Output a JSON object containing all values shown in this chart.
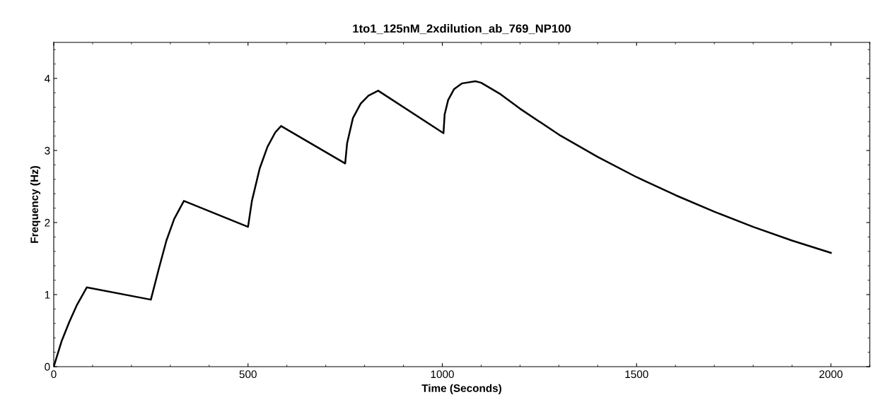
{
  "chart_data": {
    "type": "line",
    "title": "1to1_125nM_2xdilution_ab_769_NP100",
    "xlabel": "Time (Seconds)",
    "ylabel": "Frequency (Hz)",
    "xlim": [
      0,
      2100
    ],
    "ylim": [
      0,
      4.5
    ],
    "xticks": [
      0,
      500,
      1000,
      1500,
      2000
    ],
    "yticks": [
      0,
      1,
      2,
      3,
      4
    ],
    "grid": false,
    "marker": "none",
    "line_style": "solid",
    "series": [
      {
        "color": "#000000",
        "x": [
          0,
          20,
          40,
          60,
          85,
          250,
          270,
          290,
          310,
          335,
          500,
          510,
          530,
          550,
          570,
          585,
          750,
          755,
          770,
          790,
          810,
          835,
          1003,
          1006,
          1015,
          1030,
          1050,
          1085,
          1100,
          1150,
          1200,
          1300,
          1400,
          1500,
          1600,
          1700,
          1800,
          1900,
          2000
        ],
        "values": [
          0,
          0.35,
          0.62,
          0.86,
          1.1,
          0.93,
          1.35,
          1.75,
          2.05,
          2.3,
          1.94,
          2.3,
          2.75,
          3.05,
          3.25,
          3.34,
          2.82,
          3.1,
          3.45,
          3.65,
          3.76,
          3.83,
          3.24,
          3.5,
          3.7,
          3.85,
          3.93,
          3.96,
          3.94,
          3.78,
          3.58,
          3.22,
          2.91,
          2.63,
          2.38,
          2.15,
          1.94,
          1.75,
          1.58
        ]
      }
    ]
  }
}
